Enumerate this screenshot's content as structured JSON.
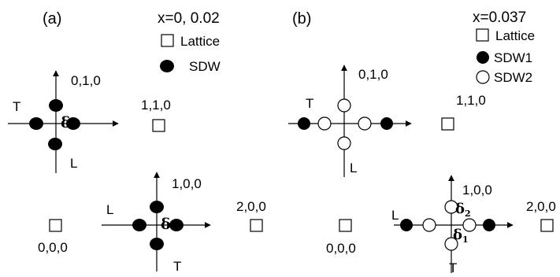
{
  "panel_a": {
    "label": "(a)",
    "composition": "x=0, 0.02",
    "legend": {
      "lattice": "Lattice",
      "sdw": "SDW"
    },
    "axis_labels": {
      "upper_T": "T",
      "upper_L": "L",
      "lower_L": "L",
      "lower_T": "T"
    },
    "delta_upper": "δ",
    "delta_lower": "δ",
    "points": {
      "p010": "0,1,0",
      "p110": "1,1,0",
      "p000": "0,0,0",
      "p100": "1,0,0",
      "p200": "2,0,0"
    }
  },
  "panel_b": {
    "label": "(b)",
    "composition": "x=0.037",
    "legend": {
      "lattice": "Lattice",
      "sdw1": "SDW1",
      "sdw2": "SDW2"
    },
    "axis_labels": {
      "upper_T": "T",
      "upper_L": "L",
      "lower_L": "L",
      "lower_T": "T"
    },
    "delta2": {
      "symbol": "δ",
      "subscript": "2"
    },
    "delta1": {
      "symbol": "δ",
      "subscript": "1"
    },
    "points": {
      "p010": "0,1,0",
      "p110": "1,1,0",
      "p000": "0,0,0",
      "p100": "1,0,0",
      "p200": "2,0,0"
    }
  }
}
